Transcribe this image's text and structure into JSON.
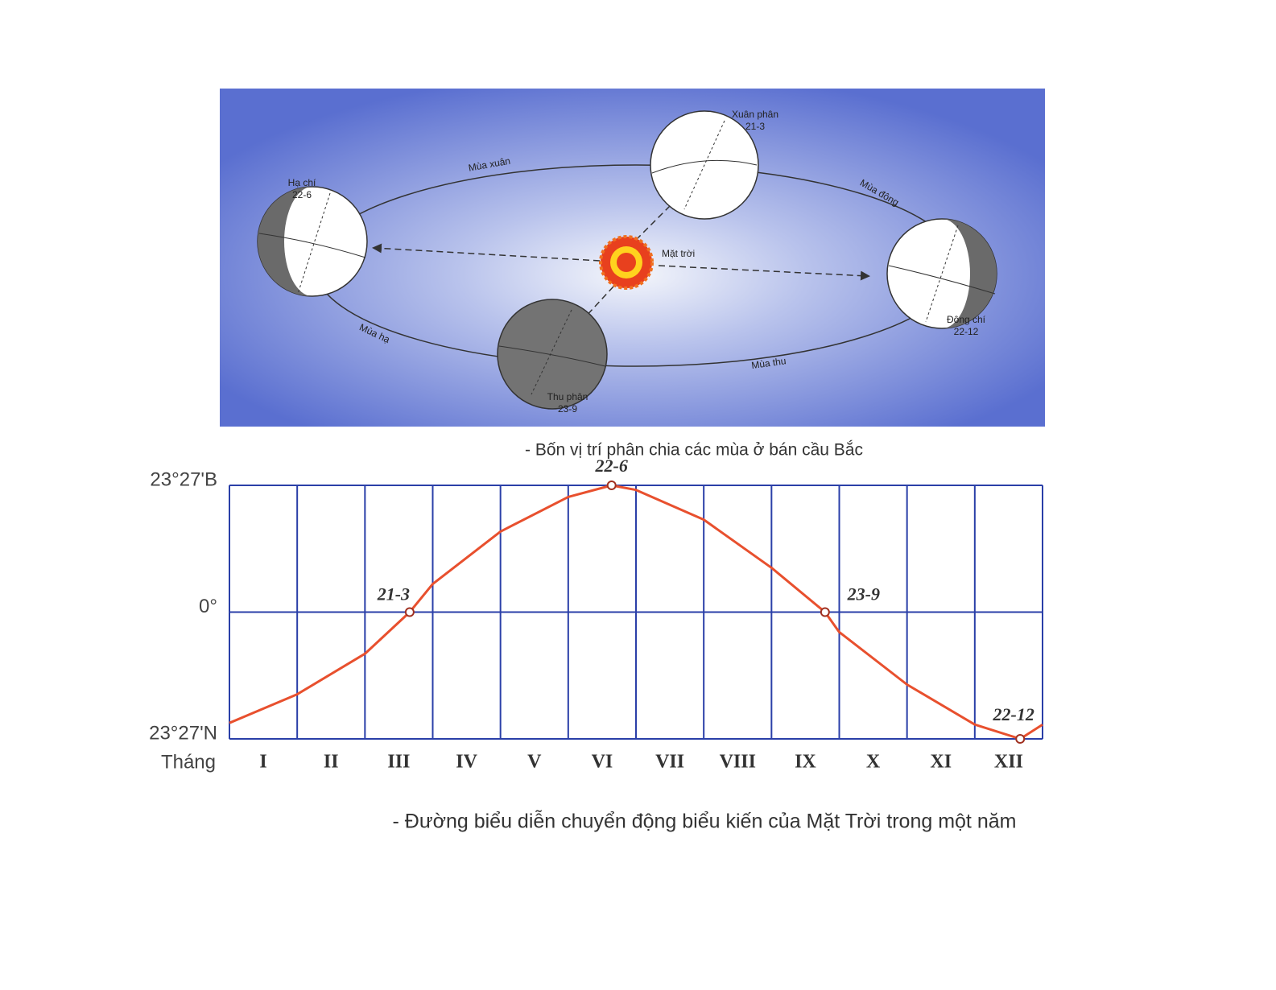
{
  "diagram": {
    "positions": [
      {
        "label": "Xuân phân",
        "date": "21-3"
      },
      {
        "label": "Hạ chí",
        "date": "22-6"
      },
      {
        "label": "Đông chí",
        "date": "22-12"
      },
      {
        "label": "Thu phân",
        "date": "23-9"
      }
    ],
    "sun": "Mặt trời",
    "seasons": [
      "Mùa xuân",
      "Mùa đông",
      "Mùa hạ",
      "Mùa thu"
    ],
    "caption": "- Bốn vị trí phân chia các mùa ở bán cầu Bắc"
  },
  "chart_data": {
    "type": "line",
    "x_label": "Tháng",
    "categories": [
      "I",
      "II",
      "III",
      "IV",
      "V",
      "VI",
      "VII",
      "VIII",
      "IX",
      "X",
      "XI",
      "XII"
    ],
    "xlim": [
      0,
      12
    ],
    "ylim": [
      -23.45,
      23.45
    ],
    "yticks": [
      {
        "value": 23.45,
        "label": "23°27'B"
      },
      {
        "value": 0,
        "label": "0°"
      },
      {
        "value": -23.45,
        "label": "23°27'N"
      }
    ],
    "grid": true,
    "series": [
      {
        "color": "#e8502e",
        "x": [
          0,
          1,
          2,
          2.66,
          3,
          4,
          5,
          5.64,
          6,
          7,
          8,
          8.79,
          9,
          10,
          11,
          11.67,
          12
        ],
        "values": [
          -20.5,
          -15.2,
          -7.7,
          0,
          5.2,
          14.9,
          21.3,
          23.45,
          22.6,
          17.1,
          8.2,
          0,
          -3.7,
          -13.4,
          -20.8,
          -23.45,
          -20.8
        ]
      }
    ],
    "annotations": [
      {
        "label": "21-3",
        "x": 2.66,
        "y": 0
      },
      {
        "label": "22-6",
        "x": 5.64,
        "y": 23.45
      },
      {
        "label": "23-9",
        "x": 8.79,
        "y": 0
      },
      {
        "label": "22-12",
        "x": 11.67,
        "y": -23.45
      }
    ],
    "caption": "- Đường biểu diễn chuyển động biểu kiến của Mặt Trời trong một năm"
  }
}
